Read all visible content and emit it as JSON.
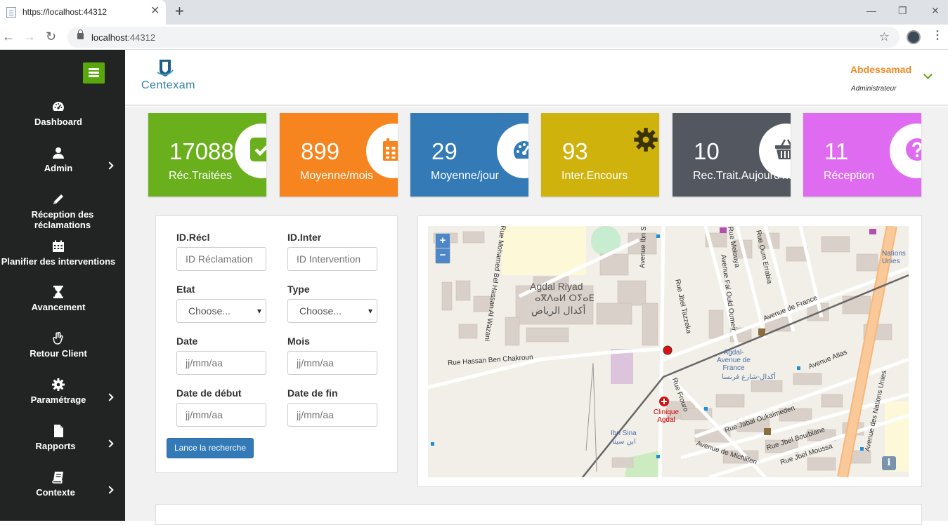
{
  "browser": {
    "tab_title": "https://localhost:44312",
    "tab_close": "✕",
    "new_tab": "+",
    "url_host": "localhost",
    "url_port": ":44312",
    "controls": {
      "minimize": "—",
      "restore": "❐",
      "close": "✕"
    }
  },
  "sidebar": {
    "items": [
      {
        "label": "Dashboard",
        "icon": "dashboard-icon",
        "has_arrow": false
      },
      {
        "label": "Admin",
        "icon": "user-icon",
        "has_arrow": true
      },
      {
        "label": "Réception des réclamations",
        "icon": "pencil-icon",
        "has_arrow": false
      },
      {
        "label": "Planifier des interventions",
        "icon": "calendar-icon",
        "has_arrow": false
      },
      {
        "label": "Avancement",
        "icon": "hourglass-icon",
        "has_arrow": false
      },
      {
        "label": "Retour Client",
        "icon": "hand-icon",
        "has_arrow": false
      },
      {
        "label": "Paramétrage",
        "icon": "gear-icon",
        "has_arrow": true
      },
      {
        "label": "Rapports",
        "icon": "file-icon",
        "has_arrow": true
      },
      {
        "label": "Contexte",
        "icon": "book-icon",
        "has_arrow": true
      }
    ]
  },
  "header": {
    "logo_text": "Centexam",
    "user_name": "Abdessamad",
    "user_role": "Administrateur"
  },
  "stats": [
    {
      "value": "17088",
      "label": "Réc.Traitées",
      "color": "#6ab01c",
      "icon": "check-icon"
    },
    {
      "value": "899",
      "label": "Moyenne/mois",
      "color": "#f6841f",
      "icon": "calendar-icon"
    },
    {
      "value": "29",
      "label": "Moyenne/jour",
      "color": "#337ab7",
      "icon": "dashboard-icon"
    },
    {
      "value": "93",
      "label": "Inter.Encours",
      "color": "#cfb20c",
      "icon": "gear-icon"
    },
    {
      "value": "10",
      "label": "Rec.Trait.Aujourd'hui",
      "color": "#53575f",
      "icon": "basket-icon"
    },
    {
      "value": "11",
      "label": "Réception",
      "color": "#df6cf0",
      "icon": "question-icon"
    }
  ],
  "search": {
    "id_recl_label": "ID.Récl",
    "id_recl_placeholder": "ID Réclamation",
    "id_inter_label": "ID.Inter",
    "id_inter_placeholder": "ID Intervention",
    "etat_label": "Etat",
    "etat_value": "Choose...",
    "type_label": "Type",
    "type_value": "Choose...",
    "date_label": "Date",
    "date_placeholder": "jj/mm/aa",
    "mois_label": "Mois",
    "mois_placeholder": "jj/mm/aa",
    "date_debut_label": "Date de début",
    "date_debut_placeholder": "jj/mm/aa",
    "date_fin_label": "Date de fin",
    "date_fin_placeholder": "jj/mm/aa",
    "button_label": "Lance la recherche"
  },
  "map": {
    "zoom_in": "+",
    "zoom_out": "−",
    "info": "i",
    "labels": {
      "district": "Agdal Riyad",
      "district_tifinagh": "ⴰⴳⴷⴰⵍ ⵔⵢⴰⴹ",
      "district_arabic": "أكدال الرياض",
      "street_hassan": "Rue Hassan Ben Chakroun",
      "street_ibn_sina": "Avenue Ibn Sina",
      "street_tazzeka": "Rue Jbel Tazzeka",
      "street_france": "Avenue de France",
      "street_atlas": "Avenue Atlas",
      "street_nations": "Avenue des Nations Unies",
      "street_oukaimeden": "Rue Jabal Oukaimeden",
      "street_bouiblane": "Rue Jbel Bouiblane",
      "street_moussa": "Rue Jbel Moussa",
      "street_michlifen": "Avenue de Michlifen",
      "street_fal_ould": "Avenue Fal Ould Oumeir",
      "street_melouya": "Rue Melouya",
      "street_errabia": "Rue Oum Errabia",
      "street_frouro": "Rue Frouro",
      "street_bel_hassan": "Rue Mohamed Bel Hassan Al Wazani",
      "agdal_avenue": "Agdal-Avenue de France",
      "agdal_arabic": "أكدال-شارع فرنسا",
      "clinique": "Clinique Agdal",
      "ibn_sina": "Ibn Sina",
      "ibn_sina_arabic": "ابن سينا",
      "nations_partial": "Nations Unies"
    }
  }
}
